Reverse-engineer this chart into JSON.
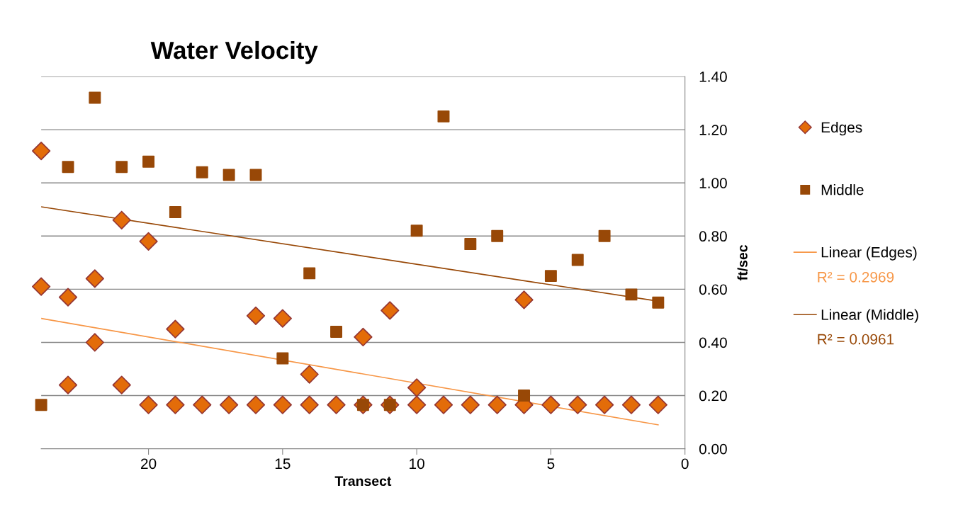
{
  "chart_data": {
    "type": "scatter",
    "title": "Water Velocity",
    "xlabel": "Transect",
    "ylabel": "ft/sec",
    "xlim": [
      24,
      0
    ],
    "xticks": [
      0,
      5,
      10,
      15,
      20
    ],
    "ylim": [
      0,
      1.4
    ],
    "yticks": [
      {
        "value": 0,
        "label": "0.00"
      },
      {
        "value": 0.2,
        "label": "0.20"
      },
      {
        "value": 0.4,
        "label": "0.40"
      },
      {
        "value": 0.6,
        "label": "0.60"
      },
      {
        "value": 0.8,
        "label": "0.80"
      },
      {
        "value": 1.0,
        "label": "1.00"
      },
      {
        "value": 1.2,
        "label": "1.20"
      },
      {
        "value": 1.4,
        "label": "1.40"
      }
    ],
    "grid": "y",
    "legend": "right",
    "series": [
      {
        "name": "Edges",
        "marker": "diamond",
        "color": "#e36c09",
        "x": [
          24,
          24,
          23,
          23,
          22,
          22,
          21,
          21,
          20,
          20,
          19,
          19,
          18,
          17,
          16,
          16,
          15,
          15,
          14,
          14,
          13,
          12,
          12,
          11,
          11,
          10,
          10,
          9,
          8,
          7,
          6,
          6,
          5,
          4,
          3,
          2,
          1
        ],
        "values": [
          1.12,
          0.61,
          0.57,
          0.24,
          0.64,
          0.4,
          0.86,
          0.24,
          0.78,
          0.165,
          0.45,
          0.165,
          0.165,
          0.165,
          0.5,
          0.165,
          0.49,
          0.165,
          0.28,
          0.165,
          0.165,
          0.42,
          0.165,
          0.52,
          0.165,
          0.23,
          0.165,
          0.165,
          0.165,
          0.165,
          0.56,
          0.165,
          0.165,
          0.165,
          0.165,
          0.165,
          0.165
        ]
      },
      {
        "name": "Middle",
        "marker": "square",
        "color": "#984807",
        "x": [
          24,
          23,
          22,
          21,
          20,
          19,
          18,
          17,
          16,
          15,
          14,
          13,
          12,
          11,
          10,
          9,
          8,
          7,
          6,
          5,
          4,
          3,
          2,
          1
        ],
        "values": [
          0.165,
          1.06,
          1.32,
          1.06,
          1.08,
          0.89,
          1.04,
          1.03,
          1.03,
          0.34,
          0.66,
          0.44,
          0.165,
          0.165,
          0.82,
          1.25,
          0.77,
          0.8,
          0.2,
          0.65,
          0.71,
          0.8,
          0.58,
          0.55
        ]
      },
      {
        "name": "Linear (Edges)",
        "type": "line",
        "line_style": "solid",
        "color": "#f79646",
        "x": [
          24,
          1
        ],
        "values": [
          0.49,
          0.09
        ]
      },
      {
        "name": "Linear (Middle)",
        "type": "line",
        "line_style": "solid",
        "color": "#984807",
        "x": [
          24,
          1
        ],
        "values": [
          0.91,
          0.555
        ]
      }
    ],
    "annotations": [
      "R² = 0.2969",
      "R² = 0.0961"
    ]
  }
}
